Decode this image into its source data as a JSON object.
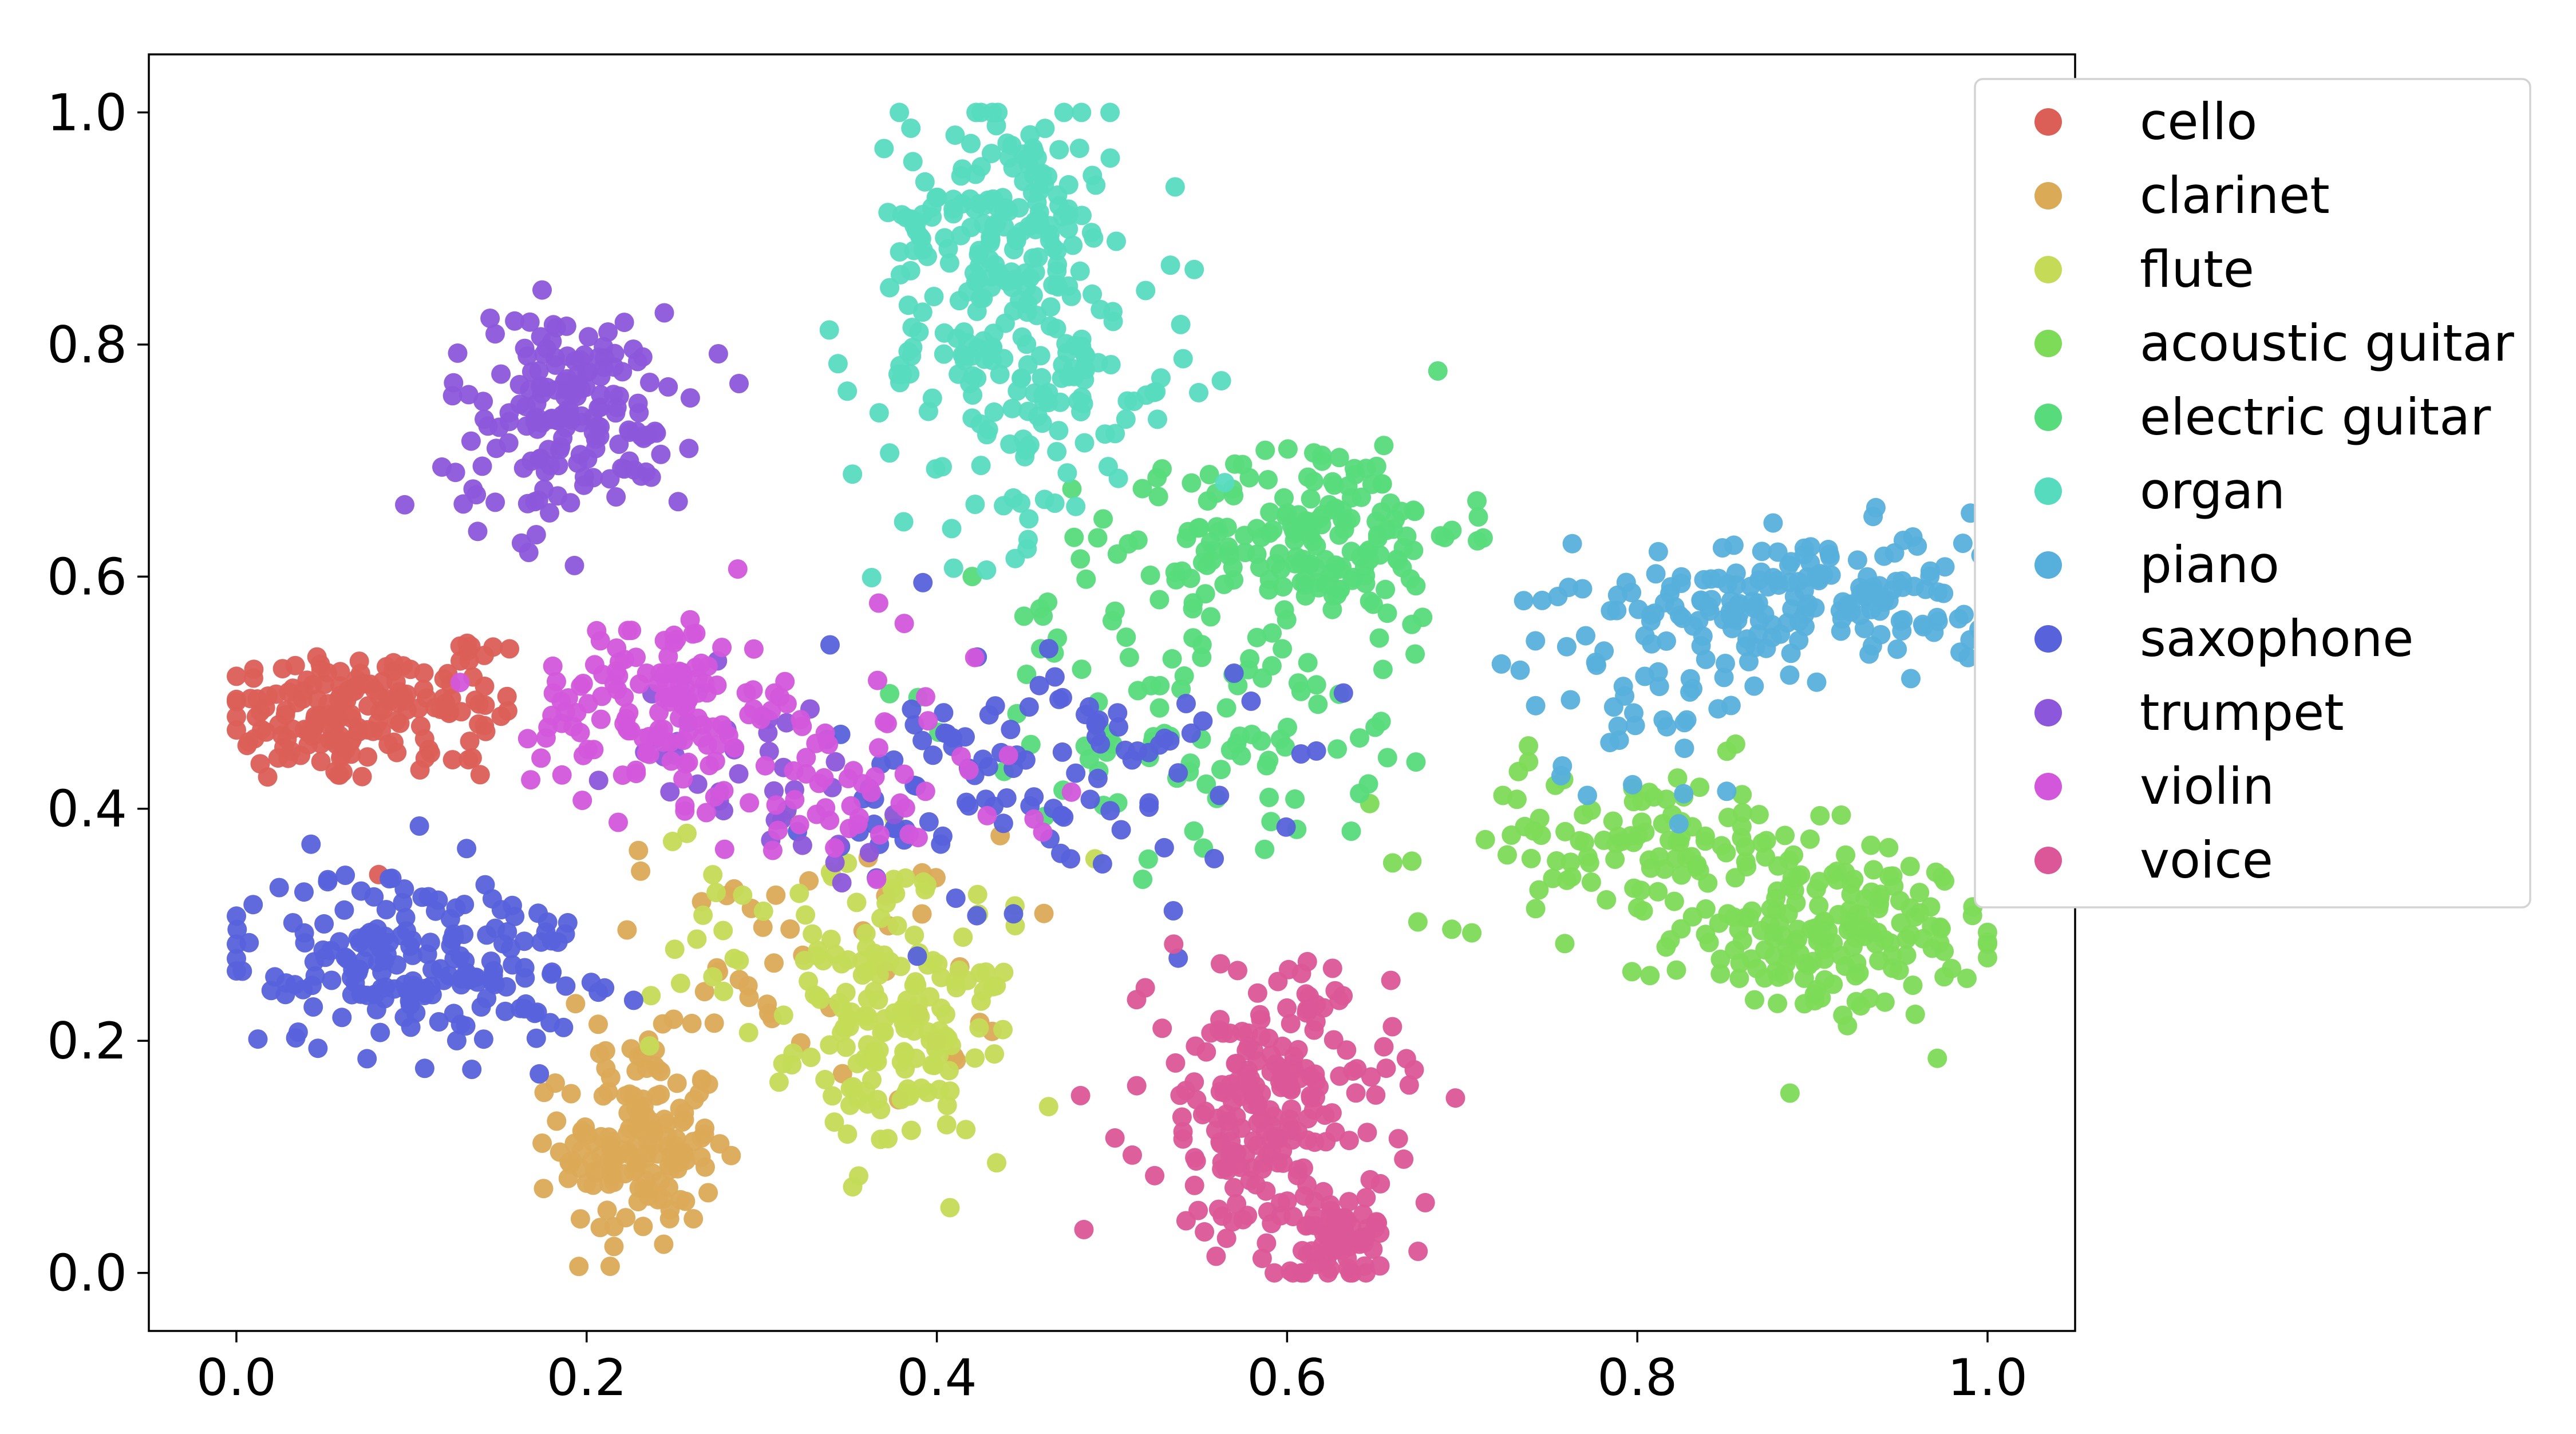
{
  "chart_data": {
    "type": "scatter",
    "title": "",
    "xlabel": "",
    "ylabel": "",
    "xlim": [
      -0.05,
      1.05
    ],
    "ylim": [
      -0.05,
      1.05
    ],
    "xticks": [
      "0.0",
      "0.2",
      "0.4",
      "0.6",
      "0.8",
      "1.0"
    ],
    "yticks": [
      "0.0",
      "0.2",
      "0.4",
      "0.6",
      "0.8",
      "1.0"
    ],
    "grid": false,
    "legend_position": "top-right",
    "series": [
      {
        "name": "cello",
        "color": "#db5f57",
        "clusters": [
          {
            "cx": 0.05,
            "cy": 0.48,
            "sx": 0.03,
            "sy": 0.03,
            "n": 120
          },
          {
            "cx": 0.12,
            "cy": 0.49,
            "sx": 0.025,
            "sy": 0.035,
            "n": 60
          }
        ]
      },
      {
        "name": "clarinet",
        "color": "#dbaa57",
        "clusters": [
          {
            "cx": 0.23,
            "cy": 0.11,
            "sx": 0.022,
            "sy": 0.045,
            "n": 150
          },
          {
            "cx": 0.32,
            "cy": 0.26,
            "sx": 0.06,
            "sy": 0.06,
            "n": 50
          }
        ]
      },
      {
        "name": "flute",
        "color": "#c5db57",
        "clusters": [
          {
            "cx": 0.38,
            "cy": 0.2,
            "sx": 0.03,
            "sy": 0.05,
            "n": 130
          },
          {
            "cx": 0.34,
            "cy": 0.29,
            "sx": 0.05,
            "sy": 0.05,
            "n": 60
          }
        ]
      },
      {
        "name": "acoustic guitar",
        "color": "#7ddb57",
        "clusters": [
          {
            "cx": 0.91,
            "cy": 0.29,
            "sx": 0.045,
            "sy": 0.035,
            "n": 170
          },
          {
            "cx": 0.8,
            "cy": 0.37,
            "sx": 0.06,
            "sy": 0.035,
            "n": 110
          }
        ]
      },
      {
        "name": "electric guitar",
        "color": "#57db7b",
        "clusters": [
          {
            "cx": 0.62,
            "cy": 0.64,
            "sx": 0.04,
            "sy": 0.04,
            "n": 150
          },
          {
            "cx": 0.56,
            "cy": 0.51,
            "sx": 0.07,
            "sy": 0.08,
            "n": 140
          }
        ]
      },
      {
        "name": "organ",
        "color": "#57dbbf",
        "clusters": [
          {
            "cx": 0.44,
            "cy": 0.91,
            "sx": 0.03,
            "sy": 0.06,
            "n": 160
          },
          {
            "cx": 0.45,
            "cy": 0.77,
            "sx": 0.05,
            "sy": 0.07,
            "n": 150
          }
        ]
      },
      {
        "name": "piano",
        "color": "#57b0db",
        "clusters": [
          {
            "cx": 0.9,
            "cy": 0.58,
            "sx": 0.06,
            "sy": 0.03,
            "n": 180
          },
          {
            "cx": 0.8,
            "cy": 0.51,
            "sx": 0.04,
            "sy": 0.05,
            "n": 50
          }
        ]
      },
      {
        "name": "saxophone",
        "color": "#5762db",
        "clusters": [
          {
            "cx": 0.1,
            "cy": 0.27,
            "sx": 0.05,
            "sy": 0.04,
            "n": 190
          },
          {
            "cx": 0.46,
            "cy": 0.43,
            "sx": 0.06,
            "sy": 0.06,
            "n": 110
          }
        ]
      },
      {
        "name": "trumpet",
        "color": "#8d57db",
        "clusters": [
          {
            "cx": 0.19,
            "cy": 0.74,
            "sx": 0.035,
            "sy": 0.045,
            "n": 170
          },
          {
            "cx": 0.3,
            "cy": 0.44,
            "sx": 0.04,
            "sy": 0.04,
            "n": 40
          }
        ]
      },
      {
        "name": "violin",
        "color": "#d357db",
        "clusters": [
          {
            "cx": 0.24,
            "cy": 0.49,
            "sx": 0.035,
            "sy": 0.04,
            "n": 130
          },
          {
            "cx": 0.34,
            "cy": 0.42,
            "sx": 0.06,
            "sy": 0.05,
            "n": 60
          }
        ]
      },
      {
        "name": "voice",
        "color": "#db5797",
        "clusters": [
          {
            "cx": 0.59,
            "cy": 0.14,
            "sx": 0.035,
            "sy": 0.06,
            "n": 220
          },
          {
            "cx": 0.63,
            "cy": 0.03,
            "sx": 0.02,
            "sy": 0.02,
            "n": 70
          }
        ]
      }
    ]
  }
}
